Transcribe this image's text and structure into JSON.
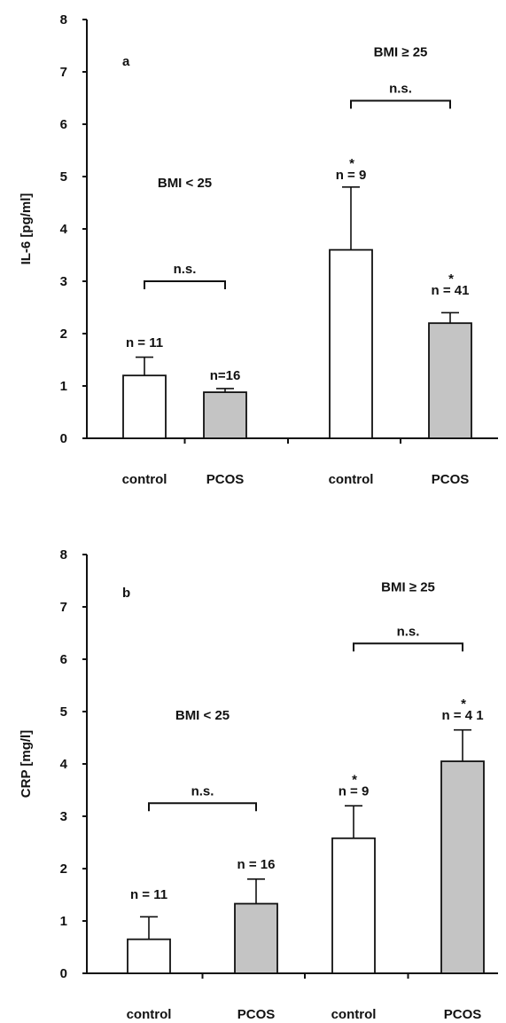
{
  "chart_data": [
    {
      "type": "bar",
      "panel_label": "a",
      "ylabel": "IL-6 [pg/ml]",
      "xlabel": "",
      "ylim": [
        0,
        8
      ],
      "yticks": [
        "0",
        "1",
        "2",
        "3",
        "4",
        "5",
        "6",
        "7",
        "8"
      ],
      "categories": [
        "control",
        "PCOS",
        "control",
        "PCOS"
      ],
      "values": [
        1.2,
        0.88,
        3.6,
        2.2
      ],
      "errors": [
        0.35,
        0.07,
        1.2,
        0.2
      ],
      "bar_colors": [
        "#ffffff",
        "#c4c4c4",
        "#ffffff",
        "#c4c4c4"
      ],
      "n_labels": [
        "n = 11",
        "n=16",
        "n = 9",
        "n = 41"
      ],
      "n_label_values": [
        1.75,
        1.12,
        4.95,
        2.75
      ],
      "n_asterisks": [
        "",
        "",
        "*",
        "*"
      ],
      "group_labels": [
        {
          "text": "BMI < 25",
          "x_center": 0.5,
          "y": 4.8
        },
        {
          "text": "BMI ≥ 25",
          "x_center": 2.5,
          "y": 7.3
        }
      ],
      "comparisons": [
        {
          "from": 0,
          "to": 1,
          "y": 3.0,
          "label": "n.s."
        },
        {
          "from": 2,
          "to": 3,
          "y": 6.45,
          "label": "n.s."
        }
      ]
    },
    {
      "type": "bar",
      "panel_label": "b",
      "ylabel": "CRP [mg/l]",
      "xlabel": "",
      "ylim": [
        0,
        8
      ],
      "yticks": [
        "0",
        "1",
        "2",
        "3",
        "4",
        "5",
        "6",
        "7",
        "8"
      ],
      "categories": [
        "control",
        "PCOS",
        "control",
        "PCOS"
      ],
      "values": [
        0.65,
        1.33,
        2.58,
        4.05
      ],
      "errors": [
        0.43,
        0.47,
        0.62,
        0.6
      ],
      "bar_colors": [
        "#ffffff",
        "#c4c4c4",
        "#ffffff",
        "#c4c4c4"
      ],
      "n_labels": [
        "n = 11",
        "n = 16",
        "n = 9",
        "n = 4 1"
      ],
      "n_label_values": [
        1.42,
        2.0,
        3.4,
        4.85
      ],
      "n_asterisks": [
        "",
        "",
        "*",
        "*"
      ],
      "group_labels": [
        {
          "text": "BMI < 25",
          "x_center": 0.5,
          "y": 4.85
        },
        {
          "text": "BMI ≥ 25",
          "x_center": 2.5,
          "y": 7.3
        }
      ],
      "comparisons": [
        {
          "from": 0,
          "to": 1,
          "y": 3.25,
          "label": "n.s."
        },
        {
          "from": 2,
          "to": 3,
          "y": 6.3,
          "label": "n.s."
        }
      ]
    }
  ]
}
